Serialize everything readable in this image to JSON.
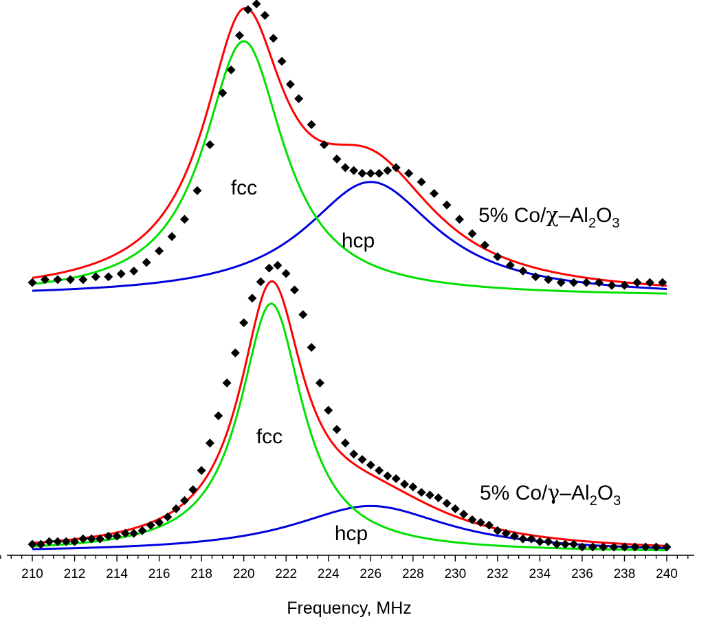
{
  "chart_data": {
    "type": "line",
    "xlabel": "Frequency, MHz",
    "xlim": [
      210,
      240
    ],
    "x_ticks": [
      "210",
      "212",
      "214",
      "216",
      "218",
      "220",
      "222",
      "224",
      "226",
      "228",
      "230",
      "232",
      "234",
      "236",
      "238",
      "240"
    ],
    "colors": {
      "data": "#000000",
      "fit": "#ff0000",
      "fcc": "#00e000",
      "hcp": "#0000dd"
    },
    "panels": [
      {
        "sample": {
          "prefix": "5% Co/",
          "greek": "χ",
          "dash": "–",
          "al": "Al",
          "sub2": "2",
          "o": "O",
          "sub3": "3"
        },
        "fcc_label": "fcc",
        "hcp_label": "hcp",
        "baseline": 0.0,
        "fcc_peak": {
          "center": 220.0,
          "height": 0.89,
          "width": 2.3
        },
        "hcp_peak": {
          "center": 226.0,
          "height": 0.4,
          "width": 3.8
        },
        "data_points": [
          [
            210,
            0.05
          ],
          [
            210.6,
            0.06
          ],
          [
            211.2,
            0.06
          ],
          [
            211.8,
            0.06
          ],
          [
            212.4,
            0.06
          ],
          [
            213.0,
            0.07
          ],
          [
            213.6,
            0.07
          ],
          [
            214.2,
            0.08
          ],
          [
            214.8,
            0.09
          ],
          [
            215.4,
            0.12
          ],
          [
            216.0,
            0.16
          ],
          [
            216.6,
            0.21
          ],
          [
            217.2,
            0.27
          ],
          [
            217.8,
            0.37
          ],
          [
            218.4,
            0.53
          ],
          [
            219.0,
            0.71
          ],
          [
            219.4,
            0.79
          ],
          [
            219.8,
            0.91
          ],
          [
            220.2,
            1.0
          ],
          [
            220.6,
            1.02
          ],
          [
            221.0,
            0.98
          ],
          [
            221.4,
            0.9
          ],
          [
            221.8,
            0.82
          ],
          [
            222.2,
            0.74
          ],
          [
            222.6,
            0.69
          ],
          [
            223.2,
            0.6
          ],
          [
            223.8,
            0.53
          ],
          [
            224.4,
            0.48
          ],
          [
            224.8,
            0.45
          ],
          [
            225.2,
            0.44
          ],
          [
            225.6,
            0.43
          ],
          [
            226.0,
            0.43
          ],
          [
            226.4,
            0.43
          ],
          [
            226.8,
            0.44
          ],
          [
            227.2,
            0.45
          ],
          [
            227.8,
            0.43
          ],
          [
            228.4,
            0.4
          ],
          [
            229.0,
            0.36
          ],
          [
            229.6,
            0.32
          ],
          [
            230.2,
            0.27
          ],
          [
            230.8,
            0.22
          ],
          [
            231.4,
            0.18
          ],
          [
            232.0,
            0.14
          ],
          [
            232.6,
            0.11
          ],
          [
            233.2,
            0.09
          ],
          [
            233.8,
            0.07
          ],
          [
            234.4,
            0.06
          ],
          [
            235.0,
            0.05
          ],
          [
            235.6,
            0.05
          ],
          [
            236.2,
            0.05
          ],
          [
            236.8,
            0.05
          ],
          [
            237.4,
            0.04
          ],
          [
            238.0,
            0.04
          ],
          [
            238.6,
            0.05
          ],
          [
            239.2,
            0.05
          ],
          [
            239.8,
            0.05
          ]
        ]
      },
      {
        "sample": {
          "prefix": "5% Co/",
          "greek": "γ",
          "dash": "–",
          "al": "Al",
          "sub2": "2",
          "o": "O",
          "sub3": "3"
        },
        "fcc_label": "fcc",
        "hcp_label": "hcp",
        "baseline": 0.0,
        "fcc_peak": {
          "center": 221.3,
          "height": 0.91,
          "width": 1.8
        },
        "hcp_peak": {
          "center": 226.0,
          "height": 0.17,
          "width": 4.5
        },
        "data_points": [
          [
            210,
            0.03
          ],
          [
            210.4,
            0.03
          ],
          [
            210.8,
            0.04
          ],
          [
            211.2,
            0.04
          ],
          [
            211.6,
            0.04
          ],
          [
            212.0,
            0.04
          ],
          [
            212.4,
            0.05
          ],
          [
            212.8,
            0.05
          ],
          [
            213.2,
            0.05
          ],
          [
            213.6,
            0.06
          ],
          [
            214.0,
            0.06
          ],
          [
            214.4,
            0.07
          ],
          [
            214.8,
            0.07
          ],
          [
            215.2,
            0.08
          ],
          [
            215.6,
            0.1
          ],
          [
            216.0,
            0.11
          ],
          [
            216.4,
            0.13
          ],
          [
            216.8,
            0.16
          ],
          [
            217.2,
            0.19
          ],
          [
            217.6,
            0.23
          ],
          [
            218.0,
            0.3
          ],
          [
            218.4,
            0.4
          ],
          [
            218.8,
            0.5
          ],
          [
            219.2,
            0.62
          ],
          [
            219.6,
            0.73
          ],
          [
            220.0,
            0.84
          ],
          [
            220.4,
            0.93
          ],
          [
            220.8,
            0.99
          ],
          [
            221.2,
            1.04
          ],
          [
            221.6,
            1.05
          ],
          [
            222.0,
            1.02
          ],
          [
            222.4,
            0.96
          ],
          [
            222.8,
            0.87
          ],
          [
            223.2,
            0.75
          ],
          [
            223.6,
            0.62
          ],
          [
            224.0,
            0.52
          ],
          [
            224.4,
            0.45
          ],
          [
            224.8,
            0.4
          ],
          [
            225.2,
            0.36
          ],
          [
            225.6,
            0.34
          ],
          [
            226.0,
            0.32
          ],
          [
            226.4,
            0.3
          ],
          [
            226.8,
            0.28
          ],
          [
            227.2,
            0.27
          ],
          [
            227.6,
            0.25
          ],
          [
            228.0,
            0.24
          ],
          [
            228.4,
            0.22
          ],
          [
            228.8,
            0.21
          ],
          [
            229.2,
            0.2
          ],
          [
            229.6,
            0.18
          ],
          [
            230.0,
            0.16
          ],
          [
            230.4,
            0.14
          ],
          [
            230.8,
            0.12
          ],
          [
            231.2,
            0.11
          ],
          [
            231.6,
            0.1
          ],
          [
            232.0,
            0.08
          ],
          [
            232.4,
            0.07
          ],
          [
            232.8,
            0.06
          ],
          [
            233.2,
            0.05
          ],
          [
            233.6,
            0.05
          ],
          [
            234.0,
            0.04
          ],
          [
            234.4,
            0.04
          ],
          [
            234.8,
            0.03
          ],
          [
            235.2,
            0.03
          ],
          [
            235.6,
            0.03
          ],
          [
            236.0,
            0.02
          ],
          [
            236.5,
            0.02
          ],
          [
            237.0,
            0.02
          ],
          [
            237.5,
            0.02
          ],
          [
            238.0,
            0.02
          ],
          [
            238.5,
            0.02
          ],
          [
            239.0,
            0.02
          ],
          [
            239.5,
            0.02
          ],
          [
            240.0,
            0.02
          ]
        ]
      }
    ]
  }
}
